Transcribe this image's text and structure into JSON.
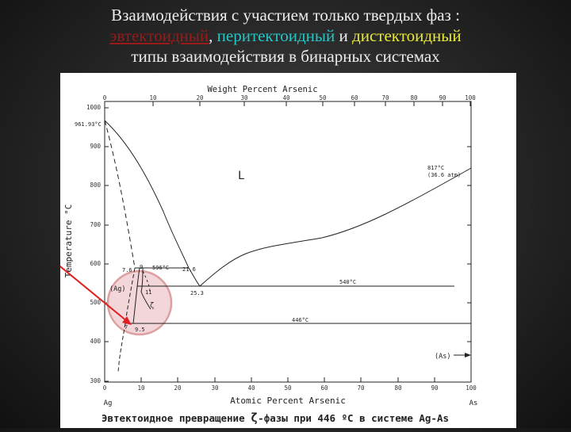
{
  "title": {
    "line1": "Взаимодействия с участием только твердых фаз :",
    "eutectoid": "эвтектоидный",
    "sep1": ", ",
    "peritectoid": "перитектоидный",
    "and": " и ",
    "distectoid": "дистектоидный",
    "line3": "типы взаимодействия в бинарных системах"
  },
  "diagram": {
    "top_axis_label": "Weight Percent Arsenic",
    "top_ticks": [
      "0",
      "10",
      "20",
      "30",
      "40",
      "50",
      "60",
      "70",
      "80",
      "90",
      "100"
    ],
    "bottom_axis_label": "Atomic Percent Arsenic",
    "bottom_ticks": [
      "0",
      "10",
      "20",
      "30",
      "40",
      "50",
      "60",
      "70",
      "80",
      "90",
      "100"
    ],
    "y_axis_label": "Temperature °C",
    "y_ticks": [
      "1000",
      "900",
      "800",
      "700",
      "600",
      "500",
      "400",
      "300"
    ],
    "left_element": "Ag",
    "right_element": "As",
    "labels": {
      "ag_melt": "961.93°C",
      "as_melt_1": "817°C",
      "as_melt_2": "(36.6 atm)",
      "liquid": "L",
      "peritectic": "596°C",
      "eut_comp_left": "21.6",
      "eut_comp_min": "25.3",
      "comp_7_6": "7.6",
      "comp_9": "9",
      "ag_phase": "(Ag)",
      "zeta": "ζ",
      "comp_11": "11",
      "eut_temp": "540°C",
      "eutectoid_temp": "446°C",
      "comp_7": "7",
      "comp_9_5": "9.5",
      "as_phase": "(As)"
    },
    "caption_pre": "Эвтектоидное превращение ",
    "caption_zeta": "ζ",
    "caption_post": "-фазы при 446 ºC в системе Ag-As"
  }
}
